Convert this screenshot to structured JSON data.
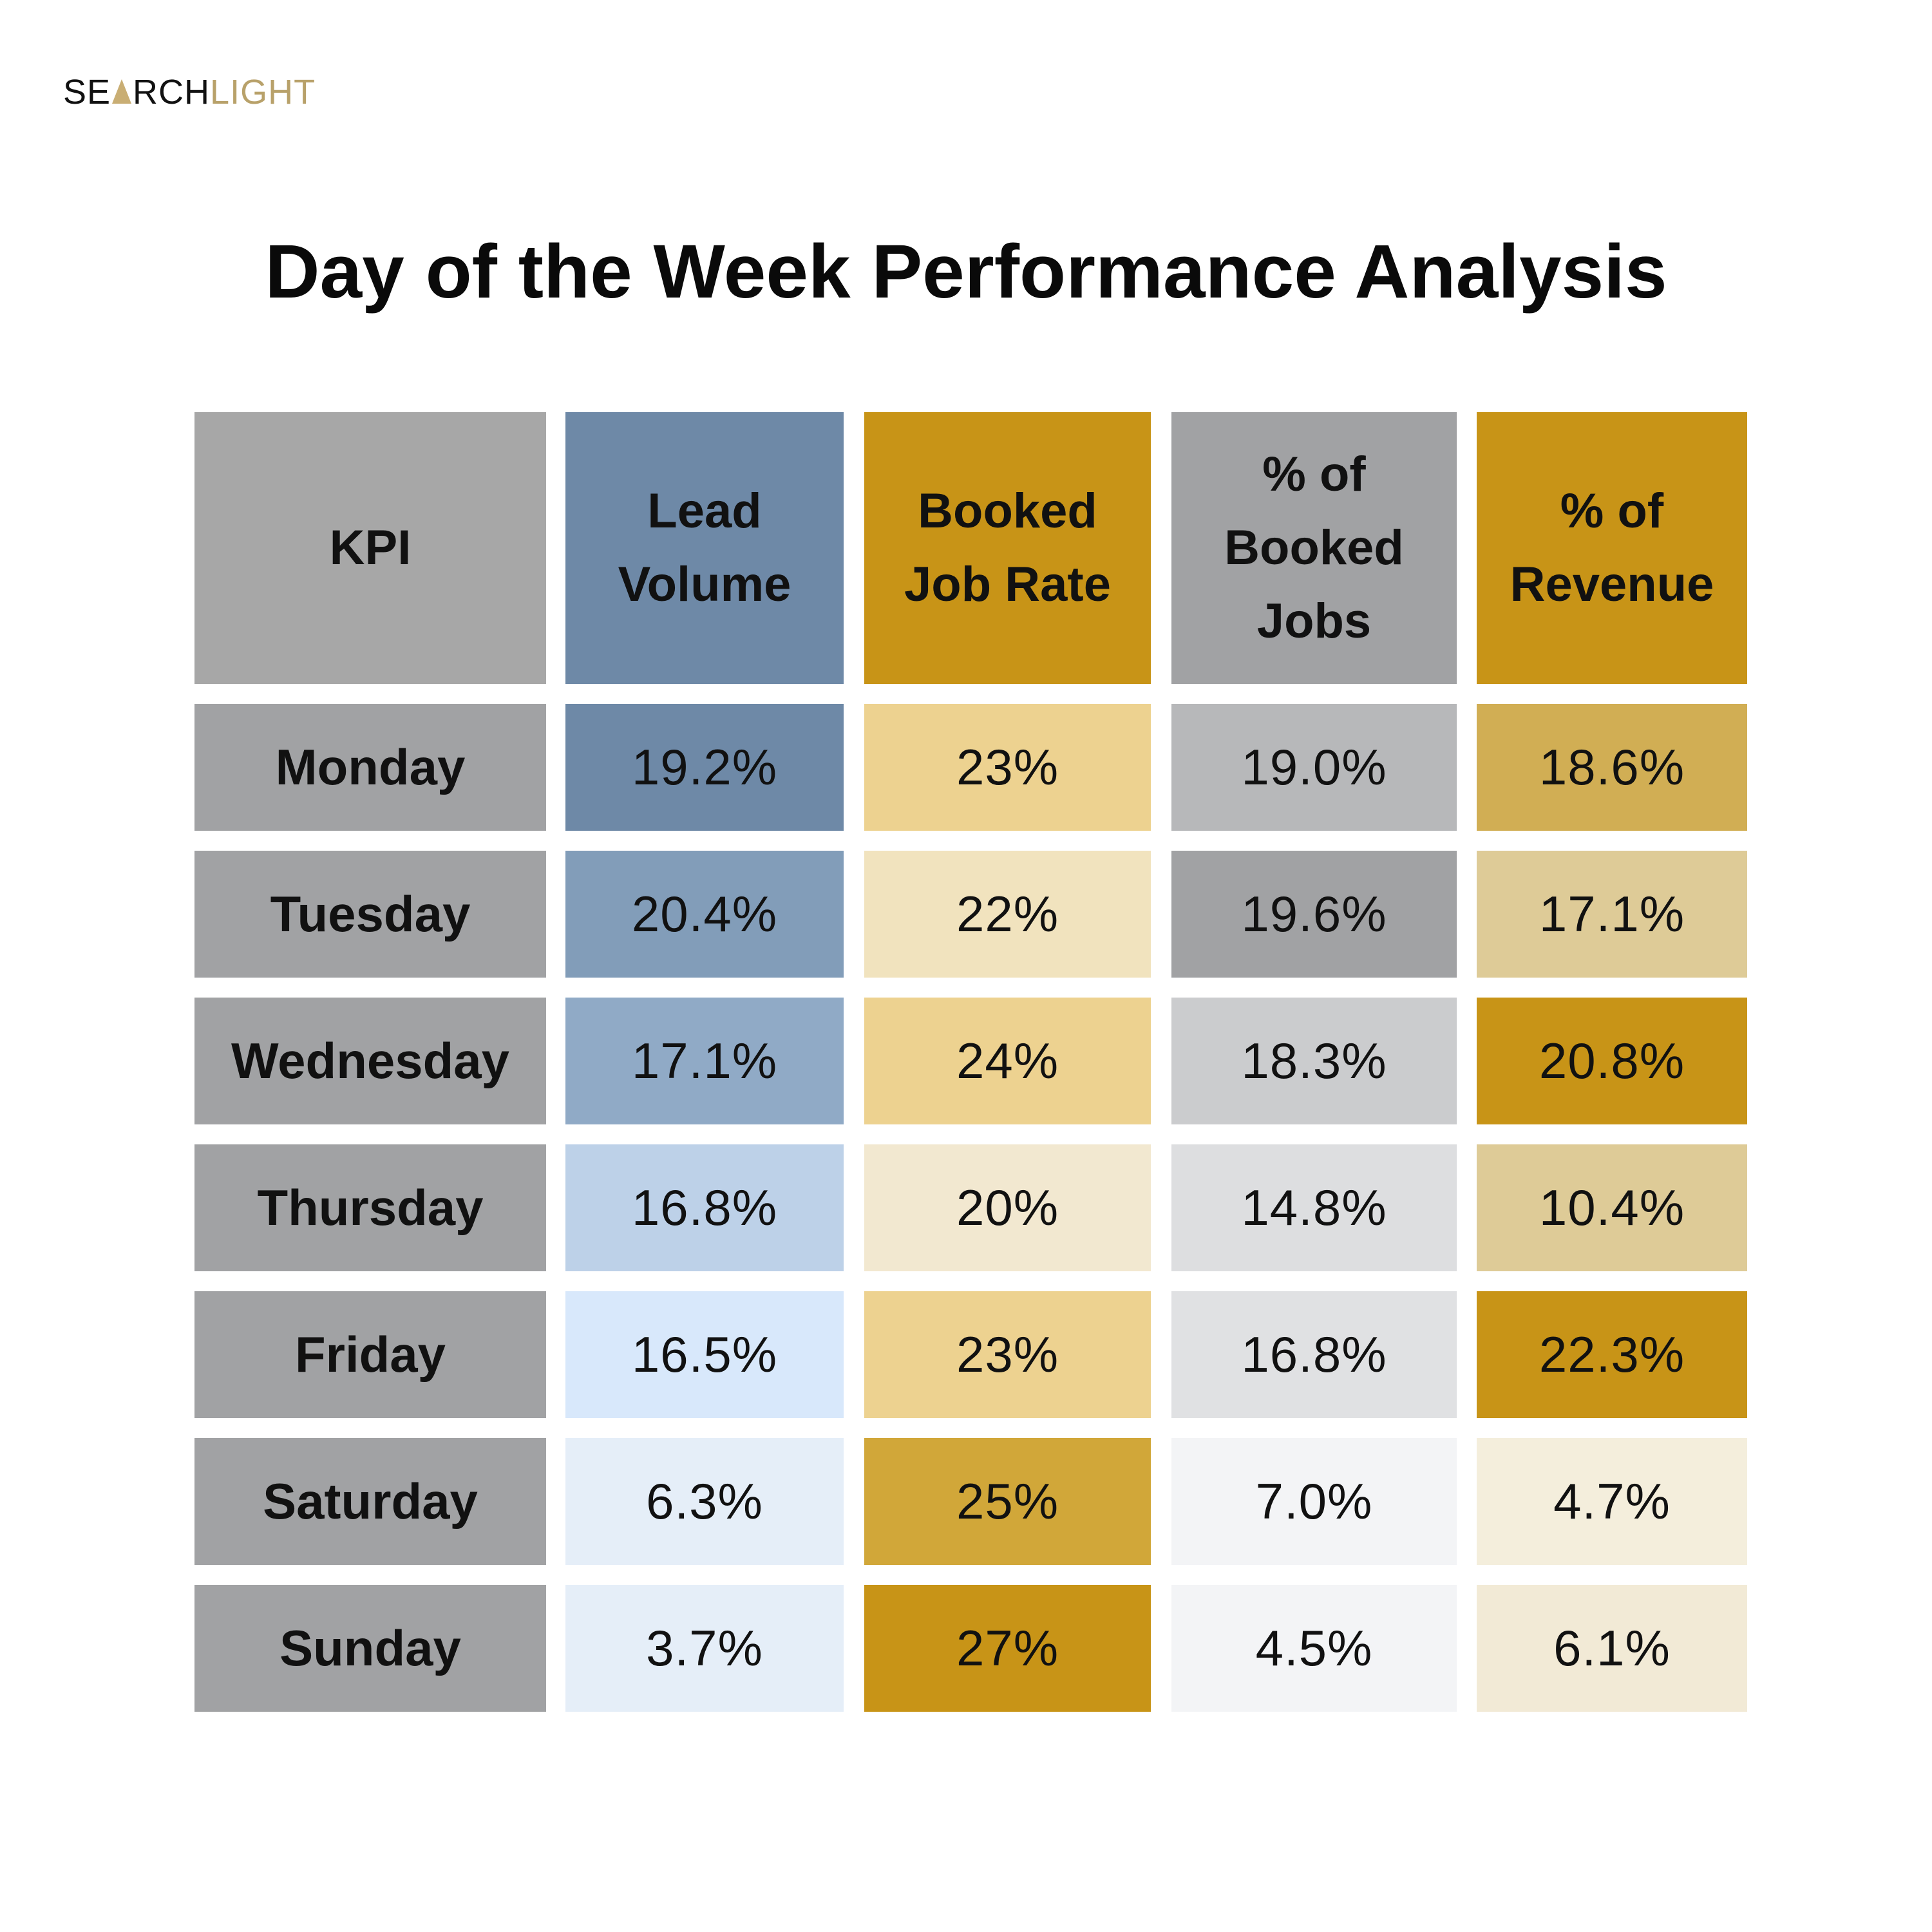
{
  "brand": {
    "logo_dark_1": "SE",
    "logo_dark_2": "RCH",
    "logo_light": "LIGHT",
    "accent_color": "#b8a16a"
  },
  "chart_data": {
    "type": "table",
    "title": "Day of the Week Performance Analysis",
    "corner_label": "KPI",
    "columns": [
      {
        "label": "Lead Volume",
        "header_color": "#6e89a7"
      },
      {
        "label": "Booked Job Rate",
        "header_color": "#c89417"
      },
      {
        "label": "% of Booked Jobs",
        "header_color": "#a1a2a4"
      },
      {
        "label": "% of Revenue",
        "header_color": "#c89417"
      }
    ],
    "corner_color": "#a7a7a7",
    "row_header_color": "#a1a2a4",
    "rows": [
      {
        "label": "Monday",
        "values": [
          "19.2%",
          "23%",
          "19.0%",
          "18.6%"
        ],
        "colors": [
          "#6e89a7",
          "#edd290",
          "#b7b8ba",
          "#d1ae54"
        ]
      },
      {
        "label": "Tuesday",
        "values": [
          "20.4%",
          "22%",
          "19.6%",
          "17.1%"
        ],
        "colors": [
          "#829db9",
          "#f1e3be",
          "#a1a2a4",
          "#decb97"
        ]
      },
      {
        "label": "Wednesday",
        "values": [
          "17.1%",
          "24%",
          "18.3%",
          "20.8%"
        ],
        "colors": [
          "#90aac6",
          "#edd290",
          "#cbccce",
          "#c89417"
        ]
      },
      {
        "label": "Thursday",
        "values": [
          "16.8%",
          "20%",
          "14.8%",
          "10.4%"
        ],
        "colors": [
          "#bdd1e8",
          "#f2e8d0",
          "#dddee0",
          "#decb97"
        ]
      },
      {
        "label": "Friday",
        "values": [
          "16.5%",
          "23%",
          "16.8%",
          "22.3%"
        ],
        "colors": [
          "#d8e8fb",
          "#edd290",
          "#e0e1e3",
          "#c89417"
        ]
      },
      {
        "label": "Saturday",
        "values": [
          "6.3%",
          "25%",
          "7.0%",
          "4.7%"
        ],
        "colors": [
          "#e5eef8",
          "#d1a739",
          "#f3f4f6",
          "#f4eedc"
        ]
      },
      {
        "label": "Sunday",
        "values": [
          "3.7%",
          "27%",
          "4.5%",
          "6.1%"
        ],
        "colors": [
          "#e5eef8",
          "#c89417",
          "#f3f4f6",
          "#f2ead6"
        ]
      }
    ]
  }
}
